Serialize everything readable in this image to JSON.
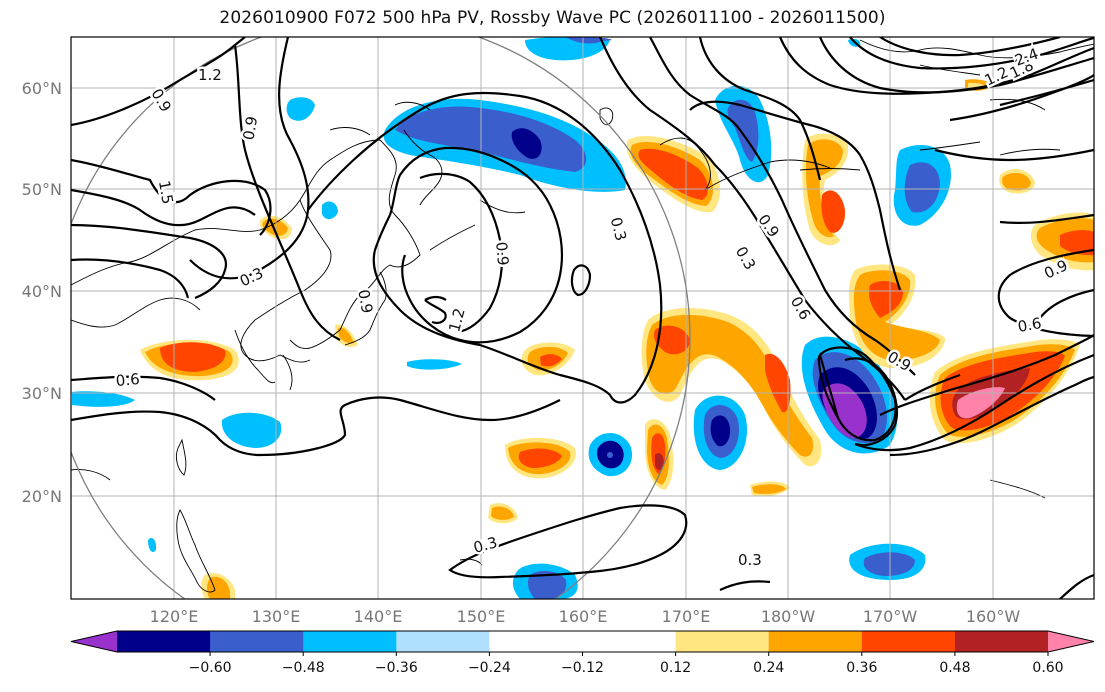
{
  "title": "2026010900 F072 500 hPa PV, Rossby Wave PC (2026011100 - 2026011500)",
  "lat_ticks": [
    "60°N",
    "50°N",
    "40°N",
    "30°N",
    "20°N"
  ],
  "lon_ticks": [
    "120°E",
    "130°E",
    "140°E",
    "150°E",
    "160°E",
    "170°E",
    "180°W",
    "170°W",
    "160°W"
  ],
  "contour_labels": [
    "1.2",
    "0.9",
    "1.5",
    "0.9",
    "0.3",
    "0.9",
    "1.2",
    "0.3",
    "0.9",
    "0.3",
    "0.6",
    "0.9",
    "0.9",
    "0.6",
    "0.6",
    "0.3",
    "0.3",
    "1.2",
    "1.8",
    "2.4",
    "0.9"
  ],
  "colorbar": {
    "colors": [
      "#9932cc",
      "#00008b",
      "#3a5fcd",
      "#00bfff",
      "#b0e0ff",
      "#ffffff",
      "#ffffff",
      "#ffe680",
      "#ffa500",
      "#ff4500",
      "#b22222",
      "#ff82ab"
    ],
    "ticks": [
      "−0.60",
      "−0.48",
      "−0.36",
      "−0.24",
      "−0.12",
      "0.12",
      "0.24",
      "0.36",
      "0.48",
      "0.60"
    ]
  }
}
